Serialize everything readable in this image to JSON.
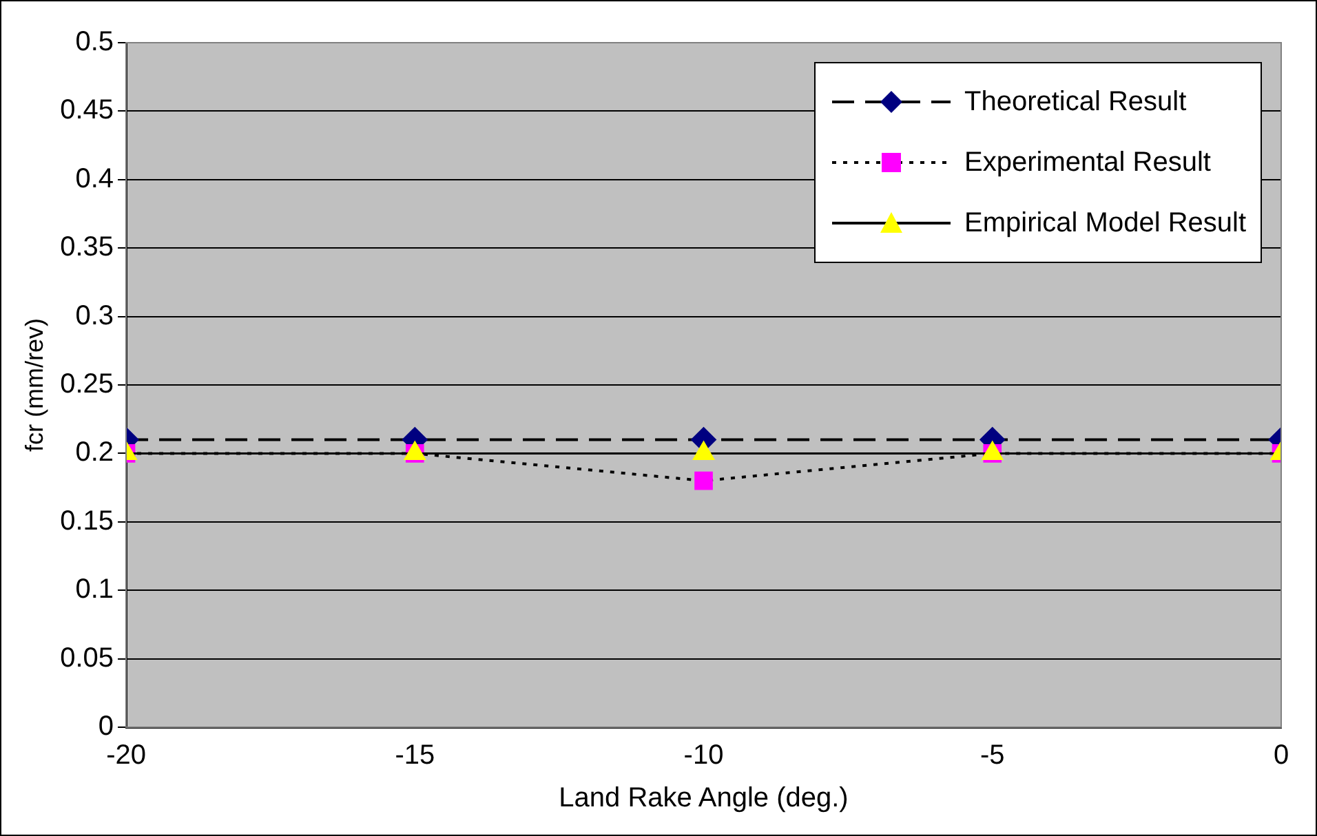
{
  "chart_data": {
    "type": "line",
    "xlabel": "Land Rake Angle (deg.)",
    "ylabel": "fcr (mm/rev)",
    "x": [
      -20,
      -15,
      -10,
      -5,
      0
    ],
    "series": [
      {
        "name": "Theoretical Result",
        "color": "#000080",
        "values": [
          0.21,
          0.21,
          0.21,
          0.21,
          0.21
        ],
        "marker": "diamond",
        "line_style": "dashed"
      },
      {
        "name": "Experimental Result",
        "color": "#ff00ff",
        "values": [
          0.2,
          0.2,
          0.18,
          0.2,
          0.2
        ],
        "marker": "square",
        "line_style": "dotted"
      },
      {
        "name": "Empirical Model Result",
        "color": "#ffff00",
        "values": [
          0.2,
          0.2,
          0.2,
          0.2,
          0.2
        ],
        "marker": "triangle",
        "line_style": "solid"
      }
    ],
    "xlim": [
      -20,
      0
    ],
    "xticks": [
      -20,
      -15,
      -10,
      -5,
      0
    ],
    "ylim": [
      0,
      0.5
    ],
    "yticks": [
      0,
      0.05,
      0.1,
      0.15,
      0.2,
      0.25,
      0.3,
      0.35,
      0.4,
      0.45,
      0.5
    ],
    "grid": "y",
    "legend": "top right"
  }
}
